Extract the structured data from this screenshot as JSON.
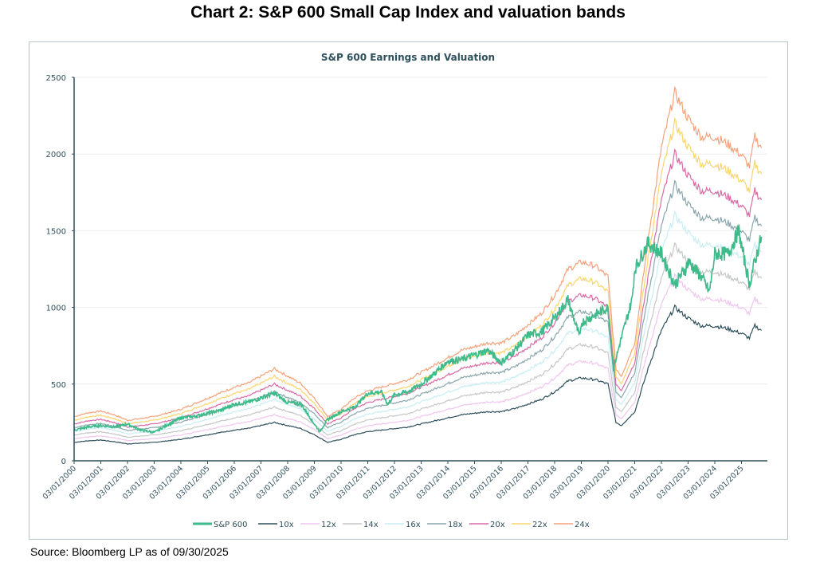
{
  "page": {
    "title": "Chart 2: S&P 600 Small Cap Index and valuation bands",
    "source": "Source: Bloomberg LP as of 09/30/2025"
  },
  "chart_data": {
    "type": "line",
    "title": "S&P 600 Earnings and Valuation",
    "xlabel": "",
    "ylabel": "",
    "ylim": [
      0,
      2500
    ],
    "yticks": [
      0,
      500,
      1000,
      1500,
      2000,
      2500
    ],
    "xlim": [
      2000,
      2026
    ],
    "xtick_labels": [
      "03/01/2000",
      "03/01/2001",
      "03/01/2002",
      "03/01/2003",
      "03/01/2004",
      "03/01/2005",
      "03/01/2006",
      "03/01/2007",
      "03/01/2008",
      "03/01/2009",
      "03/01/2010",
      "03/01/2011",
      "03/01/2012",
      "03/01/2013",
      "03/01/2014",
      "03/01/2015",
      "03/01/2016",
      "03/01/2017",
      "03/01/2018",
      "03/01/2019",
      "03/01/2020",
      "03/01/2021",
      "03/01/2022",
      "03/01/2023",
      "03/01/2024",
      "03/01/2025"
    ],
    "legend_position": "bottom",
    "grid": true,
    "index": {
      "name": "S&P 600",
      "color": "#3dbb8a",
      "x": [
        2000.0,
        2000.5,
        2001.0,
        2001.5,
        2002.0,
        2002.5,
        2003.0,
        2003.5,
        2004.0,
        2004.5,
        2005.0,
        2005.5,
        2006.0,
        2006.5,
        2007.0,
        2007.5,
        2008.0,
        2008.5,
        2009.0,
        2009.2,
        2009.5,
        2010.0,
        2010.5,
        2011.0,
        2011.5,
        2011.75,
        2012.0,
        2012.5,
        2013.0,
        2013.5,
        2014.0,
        2014.5,
        2015.0,
        2015.5,
        2016.0,
        2016.5,
        2017.0,
        2017.5,
        2018.0,
        2018.5,
        2018.95,
        2019.0,
        2019.5,
        2020.0,
        2020.2,
        2020.5,
        2020.9,
        2021.0,
        2021.5,
        2022.0,
        2022.5,
        2022.9,
        2023.0,
        2023.5,
        2023.8,
        2024.0,
        2024.5,
        2024.9,
        2025.0,
        2025.3,
        2025.5,
        2025.75
      ],
      "values": [
        200,
        220,
        230,
        220,
        240,
        200,
        185,
        235,
        280,
        290,
        310,
        330,
        370,
        380,
        410,
        440,
        380,
        370,
        240,
        190,
        270,
        320,
        350,
        440,
        450,
        370,
        430,
        450,
        500,
        570,
        650,
        660,
        690,
        720,
        640,
        720,
        820,
        840,
        930,
        1050,
        800,
        900,
        950,
        1000,
        600,
        800,
        1050,
        1250,
        1420,
        1350,
        1150,
        1250,
        1300,
        1200,
        1100,
        1350,
        1350,
        1500,
        1400,
        1150,
        1300,
        1460
      ]
    },
    "eps_x": [
      2000.0,
      2000.5,
      2001.0,
      2001.5,
      2002.0,
      2002.5,
      2003.0,
      2003.5,
      2004.0,
      2004.5,
      2005.0,
      2005.5,
      2006.0,
      2006.5,
      2007.0,
      2007.5,
      2008.0,
      2008.5,
      2009.0,
      2009.5,
      2010.0,
      2010.5,
      2011.0,
      2011.5,
      2012.0,
      2012.5,
      2013.0,
      2013.5,
      2014.0,
      2014.5,
      2015.0,
      2015.5,
      2016.0,
      2016.5,
      2017.0,
      2017.5,
      2018.0,
      2018.5,
      2019.0,
      2019.5,
      2020.0,
      2020.3,
      2020.5,
      2021.0,
      2021.5,
      2022.0,
      2022.5,
      2023.0,
      2023.5,
      2024.0,
      2024.5,
      2025.0,
      2025.3,
      2025.5,
      2025.75
    ],
    "eps": [
      12,
      13,
      13.5,
      12.5,
      11,
      11.5,
      12,
      13,
      14,
      15.5,
      17,
      18.5,
      20,
      21,
      23,
      25,
      23,
      21,
      17,
      12,
      14,
      17,
      19,
      20,
      21,
      22,
      24,
      26,
      28,
      30,
      31,
      32,
      32,
      34,
      37,
      40,
      45,
      52,
      54,
      53,
      50,
      25,
      23,
      32,
      60,
      85,
      100,
      93,
      88,
      88,
      86,
      83,
      80,
      88,
      85
    ],
    "bands": [
      {
        "name": "10x",
        "multiple": 10,
        "color": "#2e4f5c"
      },
      {
        "name": "12x",
        "multiple": 12,
        "color": "#f0c6ee"
      },
      {
        "name": "14x",
        "multiple": 14,
        "color": "#c5c8c6"
      },
      {
        "name": "16x",
        "multiple": 16,
        "color": "#c8eef4"
      },
      {
        "name": "18x",
        "multiple": 18,
        "color": "#8aa6ad"
      },
      {
        "name": "20x",
        "multiple": 20,
        "color": "#d96aa5"
      },
      {
        "name": "22x",
        "multiple": 22,
        "color": "#f9d56e"
      },
      {
        "name": "24x",
        "multiple": 24,
        "color": "#f5a27b"
      }
    ]
  }
}
